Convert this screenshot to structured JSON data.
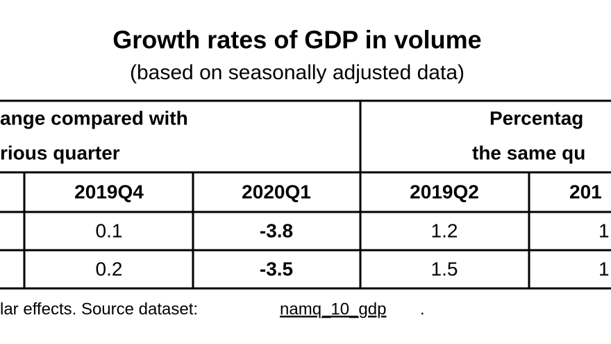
{
  "header": {
    "title": "Growth rates of GDP in volume",
    "subtitle": "(based on seasonally adjusted data)"
  },
  "table": {
    "groups": [
      [
        "ange compared with",
        "rious quarter"
      ],
      [
        "Percentag",
        "the same qu"
      ]
    ],
    "columns": [
      "2019Q4",
      "2020Q1",
      "2019Q2",
      "201"
    ],
    "rows": [
      [
        "0.1",
        "-3.8",
        "1.2",
        "1"
      ],
      [
        "0.2",
        "-3.5",
        "1.5",
        "1"
      ]
    ]
  },
  "footer": {
    "text": "lar effects. Source dataset:",
    "link": "namq_10_gdp",
    "end": "."
  }
}
